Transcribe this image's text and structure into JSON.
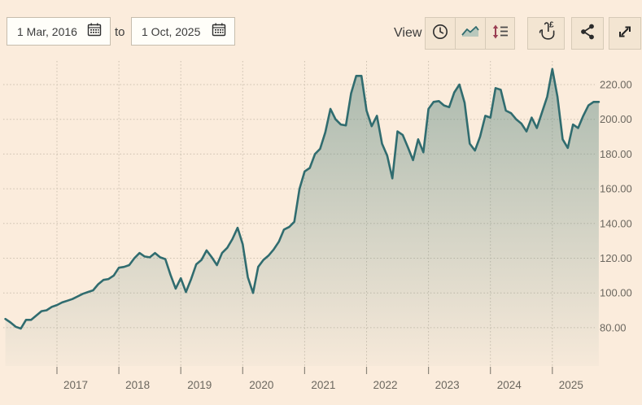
{
  "header": {
    "date_from": "1 Mar, 2016",
    "range_separator": "to",
    "date_to": "1 Oct, 2025",
    "view_label": "View"
  },
  "toolbar": {
    "group_buttons": [
      {
        "id": "time-range-view",
        "icon": "clock-icon"
      },
      {
        "id": "area-chart-view",
        "icon": "area-chart-icon"
      },
      {
        "id": "value-scale-view",
        "icon": "sort-lines-icon"
      }
    ],
    "action_buttons": [
      {
        "id": "interactive-mode",
        "icon": "tap-currency-icon"
      },
      {
        "id": "share",
        "icon": "share-icon"
      },
      {
        "id": "fullscreen",
        "icon": "expand-icon"
      }
    ]
  },
  "chart_data": {
    "type": "area",
    "title": "",
    "frequency": "monthly",
    "start": "2016-03",
    "end": "2025-10",
    "x": [
      "2016-03",
      "2016-04",
      "2016-05",
      "2016-06",
      "2016-07",
      "2016-08",
      "2016-09",
      "2016-10",
      "2016-11",
      "2016-12",
      "2017-01",
      "2017-02",
      "2017-03",
      "2017-04",
      "2017-05",
      "2017-06",
      "2017-07",
      "2017-08",
      "2017-09",
      "2017-10",
      "2017-11",
      "2017-12",
      "2018-01",
      "2018-02",
      "2018-03",
      "2018-04",
      "2018-05",
      "2018-06",
      "2018-07",
      "2018-08",
      "2018-09",
      "2018-10",
      "2018-11",
      "2018-12",
      "2019-01",
      "2019-02",
      "2019-03",
      "2019-04",
      "2019-05",
      "2019-06",
      "2019-07",
      "2019-08",
      "2019-09",
      "2019-10",
      "2019-11",
      "2019-12",
      "2020-01",
      "2020-02",
      "2020-03",
      "2020-04",
      "2020-05",
      "2020-06",
      "2020-07",
      "2020-08",
      "2020-09",
      "2020-10",
      "2020-11",
      "2020-12",
      "2021-01",
      "2021-02",
      "2021-03",
      "2021-04",
      "2021-05",
      "2021-06",
      "2021-07",
      "2021-08",
      "2021-09",
      "2021-10",
      "2021-11",
      "2021-12",
      "2022-01",
      "2022-02",
      "2022-03",
      "2022-04",
      "2022-05",
      "2022-06",
      "2022-07",
      "2022-08",
      "2022-09",
      "2022-10",
      "2022-11",
      "2022-12",
      "2023-01",
      "2023-02",
      "2023-03",
      "2023-04",
      "2023-05",
      "2023-06",
      "2023-07",
      "2023-08",
      "2023-09",
      "2023-10",
      "2023-11",
      "2023-12",
      "2024-01",
      "2024-02",
      "2024-03",
      "2024-04",
      "2024-05",
      "2024-06",
      "2024-07",
      "2024-08",
      "2024-09",
      "2024-10",
      "2024-11",
      "2024-12",
      "2025-01",
      "2025-02",
      "2025-03",
      "2025-04",
      "2025-05",
      "2025-06",
      "2025-07",
      "2025-08",
      "2025-09",
      "2025-10"
    ],
    "values": [
      85,
      83,
      80.5,
      79.5,
      84.5,
      84.5,
      87,
      89.5,
      90,
      92,
      93,
      94.5,
      95.5,
      96.5,
      98,
      99.5,
      100.5,
      101.5,
      105,
      107.5,
      108,
      110,
      114.5,
      115,
      116,
      120,
      123,
      121,
      120.5,
      123,
      120.5,
      119.5,
      110.5,
      102.5,
      108.5,
      100.5,
      108,
      116.5,
      119,
      124.5,
      120.5,
      116,
      123,
      126,
      131,
      137.5,
      128,
      109,
      100,
      115,
      119,
      121.5,
      125,
      129.5,
      136.5,
      138,
      141,
      160,
      170,
      172,
      180,
      183,
      192.5,
      206,
      200,
      197,
      196.5,
      215,
      225,
      225,
      205,
      196,
      202,
      186,
      179,
      166,
      193,
      191,
      184,
      176.5,
      188.5,
      181,
      206,
      210,
      210.5,
      208,
      207,
      215.5,
      220,
      209.5,
      186,
      182,
      190,
      202,
      201,
      218,
      217,
      205,
      203.5,
      200,
      197.5,
      193,
      201,
      195,
      204,
      213,
      229,
      213,
      188.5,
      183.5,
      197,
      195,
      202,
      208,
      210,
      210
    ],
    "x_ticks_years": [
      2017,
      2018,
      2019,
      2020,
      2021,
      2022,
      2023,
      2024,
      2025
    ],
    "x_tick_labels": [
      "2017",
      "2018",
      "2019",
      "2020",
      "2021",
      "2022",
      "2023",
      "2024",
      "2025"
    ],
    "y_ticks": [
      220,
      200,
      180,
      160,
      140,
      120,
      100,
      80
    ],
    "y_tick_labels": [
      "220.00",
      "200.00",
      "180.00",
      "160.00",
      "140.00",
      "120.00",
      "100.00",
      "80.00"
    ],
    "ylim": [
      72,
      234
    ],
    "grid": true,
    "legend": false,
    "axis_side": "right",
    "colors": {
      "background": "#fbecdc",
      "line": "#306c6f",
      "fill": "#5a8780",
      "grid": "#cbbfae",
      "axis_text": "#6b675f",
      "tick": "#8b857a",
      "accent_maroon": "#9a3f53",
      "icon_dark": "#2e2e2e"
    }
  }
}
